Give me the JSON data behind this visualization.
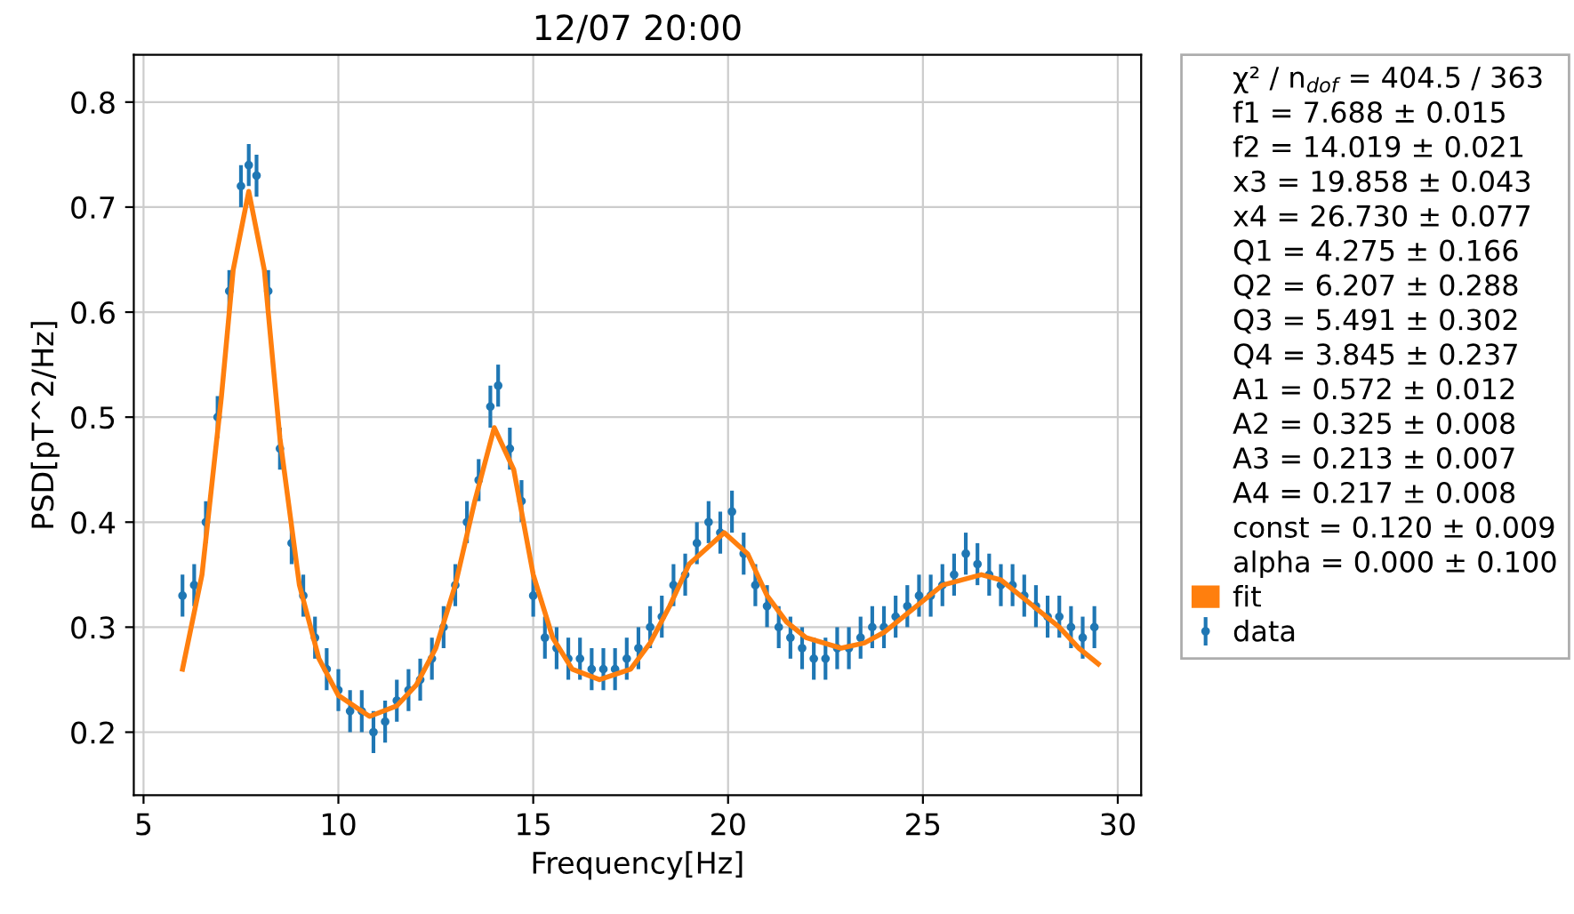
{
  "chart_data": {
    "type": "scatter",
    "title": "12/07 20:00",
    "xlabel": "Frequency[Hz]",
    "ylabel": "PSD[pT^2/Hz]",
    "xlim": [
      4.75,
      30.6
    ],
    "xticks": [
      5,
      10,
      15,
      20,
      25,
      30
    ],
    "ylim": [
      0.14,
      0.845
    ],
    "yticks": [
      0.2,
      0.3,
      0.4,
      0.5,
      0.6,
      0.7,
      0.8
    ],
    "grid": true,
    "legend": "right",
    "annotations": [
      "χ² / n$_{dof}$ = 404.5 / 363",
      "f1 = 7.688 ± 0.015",
      "f2 = 14.019 ± 0.021",
      "x3 = 19.858 ± 0.043",
      "x4 = 26.730 ± 0.077",
      "Q1 = 4.275 ± 0.166",
      "Q2 = 6.207 ± 0.288",
      "Q3 = 5.491 ± 0.302",
      "Q4 = 3.845 ± 0.237",
      "A1 = 0.572 ± 0.012",
      "A2 = 0.325 ± 0.008",
      "A3 = 0.213 ± 0.007",
      "A4 = 0.217 ± 0.008",
      "const = 0.120 ± 0.009",
      "alpha = 0.000 ± 0.100"
    ],
    "series": [
      {
        "name": "data",
        "color": "#1f77b4",
        "marker": "circle",
        "x": [
          6.0,
          6.3,
          6.6,
          6.9,
          7.2,
          7.5,
          7.7,
          7.9,
          8.2,
          8.5,
          8.8,
          9.1,
          9.4,
          9.7,
          10.0,
          10.3,
          10.6,
          10.9,
          11.2,
          11.5,
          11.8,
          12.1,
          12.4,
          12.7,
          13.0,
          13.3,
          13.6,
          13.9,
          14.1,
          14.4,
          14.7,
          15.0,
          15.3,
          15.6,
          15.9,
          16.2,
          16.5,
          16.8,
          17.1,
          17.4,
          17.7,
          18.0,
          18.3,
          18.6,
          18.9,
          19.2,
          19.5,
          19.8,
          20.1,
          20.4,
          20.7,
          21.0,
          21.3,
          21.6,
          21.9,
          22.2,
          22.5,
          22.8,
          23.1,
          23.4,
          23.7,
          24.0,
          24.3,
          24.6,
          24.9,
          25.2,
          25.5,
          25.8,
          26.1,
          26.4,
          26.7,
          27.0,
          27.3,
          27.6,
          27.9,
          28.2,
          28.5,
          28.8,
          29.1,
          29.4
        ],
        "values": [
          0.33,
          0.34,
          0.4,
          0.5,
          0.62,
          0.72,
          0.74,
          0.73,
          0.62,
          0.47,
          0.38,
          0.33,
          0.29,
          0.26,
          0.24,
          0.22,
          0.22,
          0.2,
          0.21,
          0.23,
          0.24,
          0.25,
          0.27,
          0.3,
          0.34,
          0.4,
          0.44,
          0.51,
          0.53,
          0.47,
          0.42,
          0.33,
          0.29,
          0.28,
          0.27,
          0.27,
          0.26,
          0.26,
          0.26,
          0.27,
          0.28,
          0.3,
          0.31,
          0.34,
          0.35,
          0.38,
          0.4,
          0.39,
          0.41,
          0.37,
          0.34,
          0.32,
          0.3,
          0.29,
          0.28,
          0.27,
          0.27,
          0.28,
          0.28,
          0.29,
          0.3,
          0.3,
          0.31,
          0.32,
          0.33,
          0.33,
          0.34,
          0.35,
          0.37,
          0.36,
          0.35,
          0.34,
          0.34,
          0.33,
          0.32,
          0.31,
          0.31,
          0.3,
          0.29,
          0.3
        ],
        "errors": [
          0.02,
          0.02,
          0.02,
          0.02,
          0.02,
          0.02,
          0.02,
          0.02,
          0.02,
          0.02,
          0.02,
          0.02,
          0.02,
          0.02,
          0.02,
          0.02,
          0.02,
          0.02,
          0.02,
          0.02,
          0.02,
          0.02,
          0.02,
          0.02,
          0.02,
          0.02,
          0.02,
          0.02,
          0.02,
          0.02,
          0.02,
          0.02,
          0.02,
          0.02,
          0.02,
          0.02,
          0.02,
          0.02,
          0.02,
          0.02,
          0.02,
          0.02,
          0.02,
          0.02,
          0.02,
          0.02,
          0.02,
          0.02,
          0.02,
          0.02,
          0.02,
          0.02,
          0.02,
          0.02,
          0.02,
          0.02,
          0.02,
          0.02,
          0.02,
          0.02,
          0.02,
          0.02,
          0.02,
          0.02,
          0.02,
          0.02,
          0.02,
          0.02,
          0.02,
          0.02,
          0.02,
          0.02,
          0.02,
          0.02,
          0.02,
          0.02,
          0.02,
          0.02,
          0.02,
          0.02
        ]
      },
      {
        "name": "fit",
        "type": "line",
        "color": "#ff7f0e",
        "x": [
          6.0,
          6.5,
          7.0,
          7.3,
          7.7,
          8.1,
          8.5,
          9.0,
          9.5,
          10.0,
          10.8,
          11.5,
          12.0,
          12.5,
          13.0,
          13.5,
          14.0,
          14.5,
          15.0,
          15.5,
          16.0,
          16.7,
          17.5,
          18.0,
          18.5,
          19.0,
          19.9,
          20.5,
          21.0,
          21.5,
          22.0,
          22.9,
          23.5,
          24.0,
          24.5,
          25.0,
          25.5,
          26.5,
          27.0,
          27.5,
          28.0,
          28.5,
          29.0,
          29.5
        ],
        "values": [
          0.26,
          0.35,
          0.52,
          0.64,
          0.715,
          0.64,
          0.48,
          0.34,
          0.27,
          0.235,
          0.215,
          0.225,
          0.245,
          0.28,
          0.34,
          0.42,
          0.49,
          0.45,
          0.35,
          0.29,
          0.26,
          0.25,
          0.26,
          0.285,
          0.32,
          0.36,
          0.39,
          0.37,
          0.33,
          0.305,
          0.29,
          0.28,
          0.285,
          0.295,
          0.31,
          0.325,
          0.34,
          0.35,
          0.345,
          0.33,
          0.315,
          0.3,
          0.28,
          0.265
        ]
      }
    ]
  }
}
